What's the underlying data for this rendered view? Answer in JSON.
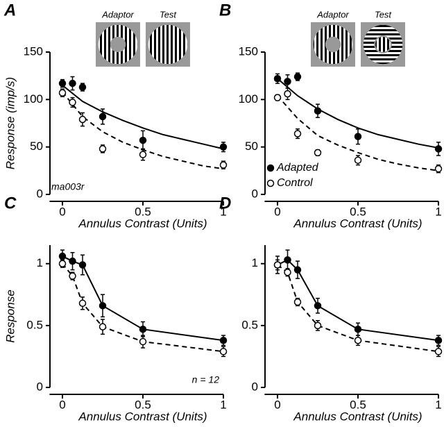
{
  "chart_data": [
    {
      "type": "scatter",
      "panel": "A",
      "ylabel": "Response (imp/s)",
      "xlabel": "Annulus Contrast (Units)",
      "xlim": [
        -0.08,
        1
      ],
      "ylim": [
        0,
        150
      ],
      "xticks": [
        0,
        0.5,
        1
      ],
      "yticks": [
        0,
        50,
        100,
        150
      ],
      "annotation": "ma003r",
      "annotation_corner": "lower-left",
      "inset": {
        "labels": [
          "Adaptor",
          "Test"
        ],
        "test": "full"
      },
      "series": [
        {
          "color": "#000000",
          "marker": "filled",
          "line_style": "solid",
          "x": [
            0,
            0.0625,
            0.125,
            0.25,
            0.5,
            1
          ],
          "values": [
            117,
            117,
            113,
            82,
            57,
            50
          ],
          "errors": [
            4,
            7,
            4,
            8,
            10,
            5
          ],
          "fit": {
            "x": [
              0,
              0.125,
              0.25,
              0.375,
              0.5,
              0.625,
              0.75,
              0.875,
              1
            ],
            "values": [
              115,
              98,
              87,
              78,
              70,
              63,
              58,
              53,
              48
            ]
          }
        },
        {
          "color": "#000000",
          "marker": "open",
          "line_style": "dashed",
          "x": [
            0,
            0.0625,
            0.125,
            0.25,
            0.5,
            1
          ],
          "values": [
            107,
            97,
            79,
            48,
            42,
            31
          ],
          "errors": [
            4,
            5,
            7,
            4,
            6,
            4
          ],
          "fit": {
            "x": [
              0,
              0.125,
              0.25,
              0.375,
              0.5,
              0.625,
              0.75,
              0.875,
              1
            ],
            "values": [
              108,
              82,
              66,
              55,
              47,
              40,
              35,
              30,
              27
            ]
          }
        }
      ]
    },
    {
      "type": "scatter",
      "panel": "B",
      "xlabel": "Annulus Contrast (Units)",
      "xlim": [
        -0.08,
        1
      ],
      "ylim": [
        0,
        150
      ],
      "xticks": [
        0,
        0.5,
        1
      ],
      "yticks": [
        0,
        50,
        100,
        150
      ],
      "legend": "lower-left",
      "inset": {
        "labels": [
          "Adaptor",
          "Test"
        ],
        "test": "orthogonal-surround"
      },
      "series": [
        {
          "name": "Adapted",
          "color": "#000000",
          "marker": "filled",
          "line_style": "solid",
          "x": [
            0,
            0.0625,
            0.125,
            0.25,
            0.5,
            1
          ],
          "values": [
            122,
            119,
            124,
            88,
            61,
            48
          ],
          "errors": [
            5,
            7,
            4,
            7,
            8,
            7
          ],
          "fit": {
            "x": [
              0,
              0.125,
              0.25,
              0.375,
              0.5,
              0.625,
              0.75,
              0.875,
              1
            ],
            "values": [
              122,
              104,
              90,
              79,
              70,
              63,
              58,
              53,
              49
            ]
          }
        },
        {
          "name": "Control",
          "color": "#000000",
          "marker": "open",
          "line_style": "dashed",
          "x": [
            0,
            0.0625,
            0.125,
            0.25,
            0.5,
            1
          ],
          "values": [
            102,
            106,
            64,
            44,
            36,
            27
          ],
          "errors": [
            3,
            6,
            5,
            3,
            5,
            4
          ],
          "fit": {
            "x": [
              0,
              0.125,
              0.25,
              0.375,
              0.5,
              0.625,
              0.75,
              0.875,
              1
            ],
            "values": [
              104,
              80,
              62,
              52,
              44,
              37,
              32,
              28,
              25
            ]
          }
        }
      ]
    },
    {
      "type": "scatter",
      "panel": "C",
      "ylabel": "Response",
      "xlabel": "Annulus Contrast (Units)",
      "xlim": [
        -0.08,
        1
      ],
      "ylim": [
        0,
        1.15
      ],
      "xticks": [
        0,
        0.5,
        1
      ],
      "yticks": [
        0,
        0.5,
        1
      ],
      "annotation": "n = 12",
      "annotation_corner": "lower-right",
      "connect": true,
      "series": [
        {
          "color": "#000000",
          "marker": "filled",
          "line_style": "solid",
          "x": [
            0,
            0.0625,
            0.125,
            0.25,
            0.5,
            1
          ],
          "values": [
            1.06,
            1.02,
            0.99,
            0.66,
            0.47,
            0.38
          ],
          "errors": [
            0.05,
            0.07,
            0.08,
            0.09,
            0.06,
            0.04
          ]
        },
        {
          "color": "#000000",
          "marker": "open",
          "line_style": "dashed",
          "x": [
            0,
            0.0625,
            0.125,
            0.25,
            0.5,
            1
          ],
          "values": [
            1.0,
            0.9,
            0.68,
            0.49,
            0.37,
            0.29
          ],
          "errors": [
            0.03,
            0.03,
            0.05,
            0.06,
            0.05,
            0.04
          ]
        }
      ]
    },
    {
      "type": "scatter",
      "panel": "D",
      "xlabel": "Annulus Contrast (Units)",
      "xlim": [
        -0.08,
        1
      ],
      "ylim": [
        0,
        1.15
      ],
      "xticks": [
        0,
        0.5,
        1
      ],
      "yticks": [
        0,
        0.5,
        1
      ],
      "connect": true,
      "series": [
        {
          "color": "#000000",
          "marker": "filled",
          "line_style": "solid",
          "x": [
            0,
            0.0625,
            0.125,
            0.25,
            0.5,
            1
          ],
          "values": [
            0.99,
            1.03,
            0.95,
            0.66,
            0.47,
            0.38
          ],
          "errors": [
            0.07,
            0.08,
            0.07,
            0.06,
            0.05,
            0.04
          ]
        },
        {
          "color": "#000000",
          "marker": "open",
          "line_style": "dashed",
          "x": [
            0,
            0.0625,
            0.125,
            0.25,
            0.5,
            1
          ],
          "values": [
            0.99,
            0.93,
            0.69,
            0.5,
            0.38,
            0.29
          ],
          "errors": [
            0.04,
            0.03,
            0.03,
            0.04,
            0.04,
            0.04
          ]
        }
      ]
    }
  ]
}
